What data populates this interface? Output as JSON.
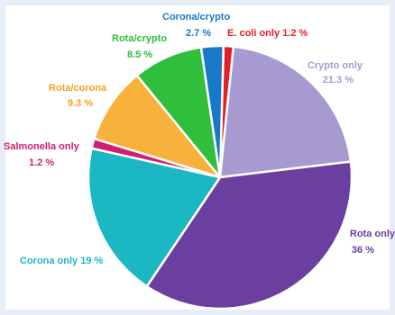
{
  "chart_data": {
    "type": "pie",
    "slices": [
      {
        "label": "E. coli only",
        "value": 1.2,
        "display": "1.2 %",
        "color": "#e31e24",
        "text_color": "#e31e24"
      },
      {
        "label": "Crypto only",
        "value": 21.3,
        "display": "21.3 %",
        "color": "#a79ad0",
        "text_color": "#a79ad0"
      },
      {
        "label": "Rota only",
        "value": 36,
        "display": "36 %",
        "color": "#6b3fa0",
        "text_color": "#6b3fa0"
      },
      {
        "label": "Corona only",
        "value": 19,
        "display": "19 %",
        "color": "#1bb8c3",
        "text_color": "#1bb8c3"
      },
      {
        "label": "Salmonella only",
        "value": 1.2,
        "display": "1.2 %",
        "color": "#d31d6e",
        "text_color": "#d31d6e"
      },
      {
        "label": "Rota/corona",
        "value": 9.3,
        "display": "9.3 %",
        "color": "#f7b23b",
        "text_color": "#f7a21b"
      },
      {
        "label": "Rota/crypto",
        "value": 8.5,
        "display": "8.5 %",
        "color": "#2fbf3b",
        "text_color": "#2fbf3b"
      },
      {
        "label": "Corona/crypto",
        "value": 2.7,
        "display": "2.7 %",
        "color": "#1779c7",
        "text_color": "#1779c7"
      }
    ]
  }
}
